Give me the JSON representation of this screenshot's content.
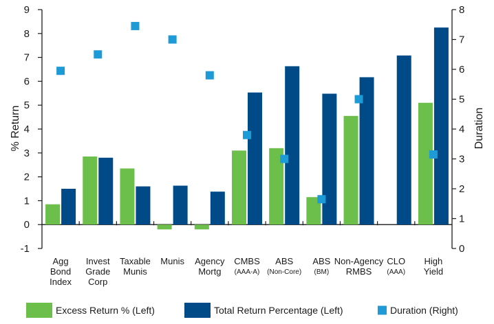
{
  "chart_data": {
    "type": "bar",
    "categories": [
      {
        "lines": [
          "Agg",
          "Bond",
          "Index"
        ],
        "sub": ""
      },
      {
        "lines": [
          "Invest",
          "Grade",
          "Corp"
        ],
        "sub": ""
      },
      {
        "lines": [
          "Taxable",
          "Munis"
        ],
        "sub": ""
      },
      {
        "lines": [
          "Munis"
        ],
        "sub": ""
      },
      {
        "lines": [
          "Agency",
          "Mortg"
        ],
        "sub": ""
      },
      {
        "lines": [
          "CMBS"
        ],
        "sub": "(AAA-A)"
      },
      {
        "lines": [
          "ABS"
        ],
        "sub": "(Non-Core)"
      },
      {
        "lines": [
          "ABS"
        ],
        "sub": "(BM)"
      },
      {
        "lines": [
          "Non-Agency",
          "RMBS"
        ],
        "sub": ""
      },
      {
        "lines": [
          "CLO"
        ],
        "sub": "(AAA)"
      },
      {
        "lines": [
          "High",
          "Yield"
        ],
        "sub": ""
      }
    ],
    "series": [
      {
        "name": "Excess Return % (Left)",
        "axis": "left",
        "kind": "bar",
        "color": "#6cbf4a",
        "values": [
          0.85,
          2.85,
          2.35,
          -0.2,
          -0.2,
          3.1,
          3.2,
          1.15,
          4.55,
          null,
          5.1
        ]
      },
      {
        "name": "Total Return Percentage (Left)",
        "axis": "left",
        "kind": "bar",
        "color": "#004b87",
        "values": [
          1.5,
          2.8,
          1.6,
          1.63,
          1.38,
          5.53,
          6.63,
          5.48,
          6.17,
          7.08,
          8.25
        ]
      },
      {
        "name": "Duration (Right)",
        "axis": "right",
        "kind": "marker",
        "color": "#1e9ad6",
        "values": [
          5.95,
          6.5,
          7.45,
          7.0,
          5.8,
          3.8,
          3.0,
          1.65,
          5.0,
          null,
          3.15
        ]
      }
    ],
    "left_axis": {
      "label": "% Return",
      "ylim": [
        -1,
        9
      ],
      "ticks": [
        -1,
        0,
        1,
        2,
        3,
        4,
        5,
        6,
        7,
        8,
        9
      ]
    },
    "right_axis": {
      "label": "Duration",
      "ylim": [
        0,
        8
      ],
      "ticks": [
        0,
        1,
        2,
        3,
        4,
        5,
        6,
        7,
        8
      ]
    },
    "grid": false,
    "legend_placement": "bottom"
  }
}
